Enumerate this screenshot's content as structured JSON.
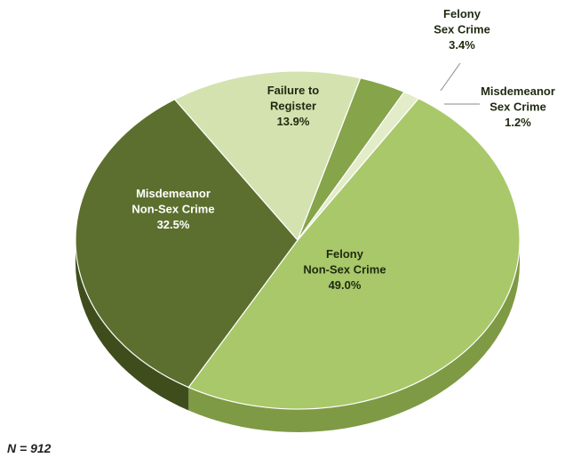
{
  "chart_data": {
    "type": "pie",
    "title": "",
    "slices": [
      {
        "name_lines": [
          "Felony",
          "Non-Sex Crime"
        ],
        "pct_label": "49.0%",
        "value": 49.0,
        "color": "#a9c86a",
        "side": "#7e9a44",
        "text_color": "#1e2a10"
      },
      {
        "name_lines": [
          "Misdemeanor",
          "Non-Sex Crime"
        ],
        "pct_label": "32.5%",
        "value": 32.5,
        "color": "#5c6f2e",
        "side": "#3f4d1d",
        "text_color": "#ffffff"
      },
      {
        "name_lines": [
          "Failure to",
          "Register"
        ],
        "pct_label": "13.9%",
        "value": 13.9,
        "color": "#d4e2b0",
        "side": "#a9b887",
        "text_color": "#1e2a10"
      },
      {
        "name_lines": [
          "Felony",
          "Sex Crime"
        ],
        "pct_label": "3.4%",
        "value": 3.4,
        "color": "#86a44a",
        "side": "#627a33",
        "text_color": "#1e2a10"
      },
      {
        "name_lines": [
          "Misdemeanor",
          "Sex Crime"
        ],
        "pct_label": "1.2%",
        "value": 1.2,
        "color": "#e3ecc8",
        "side": "#b5c29a",
        "text_color": "#1e2a10"
      }
    ]
  },
  "note": "N = 912"
}
